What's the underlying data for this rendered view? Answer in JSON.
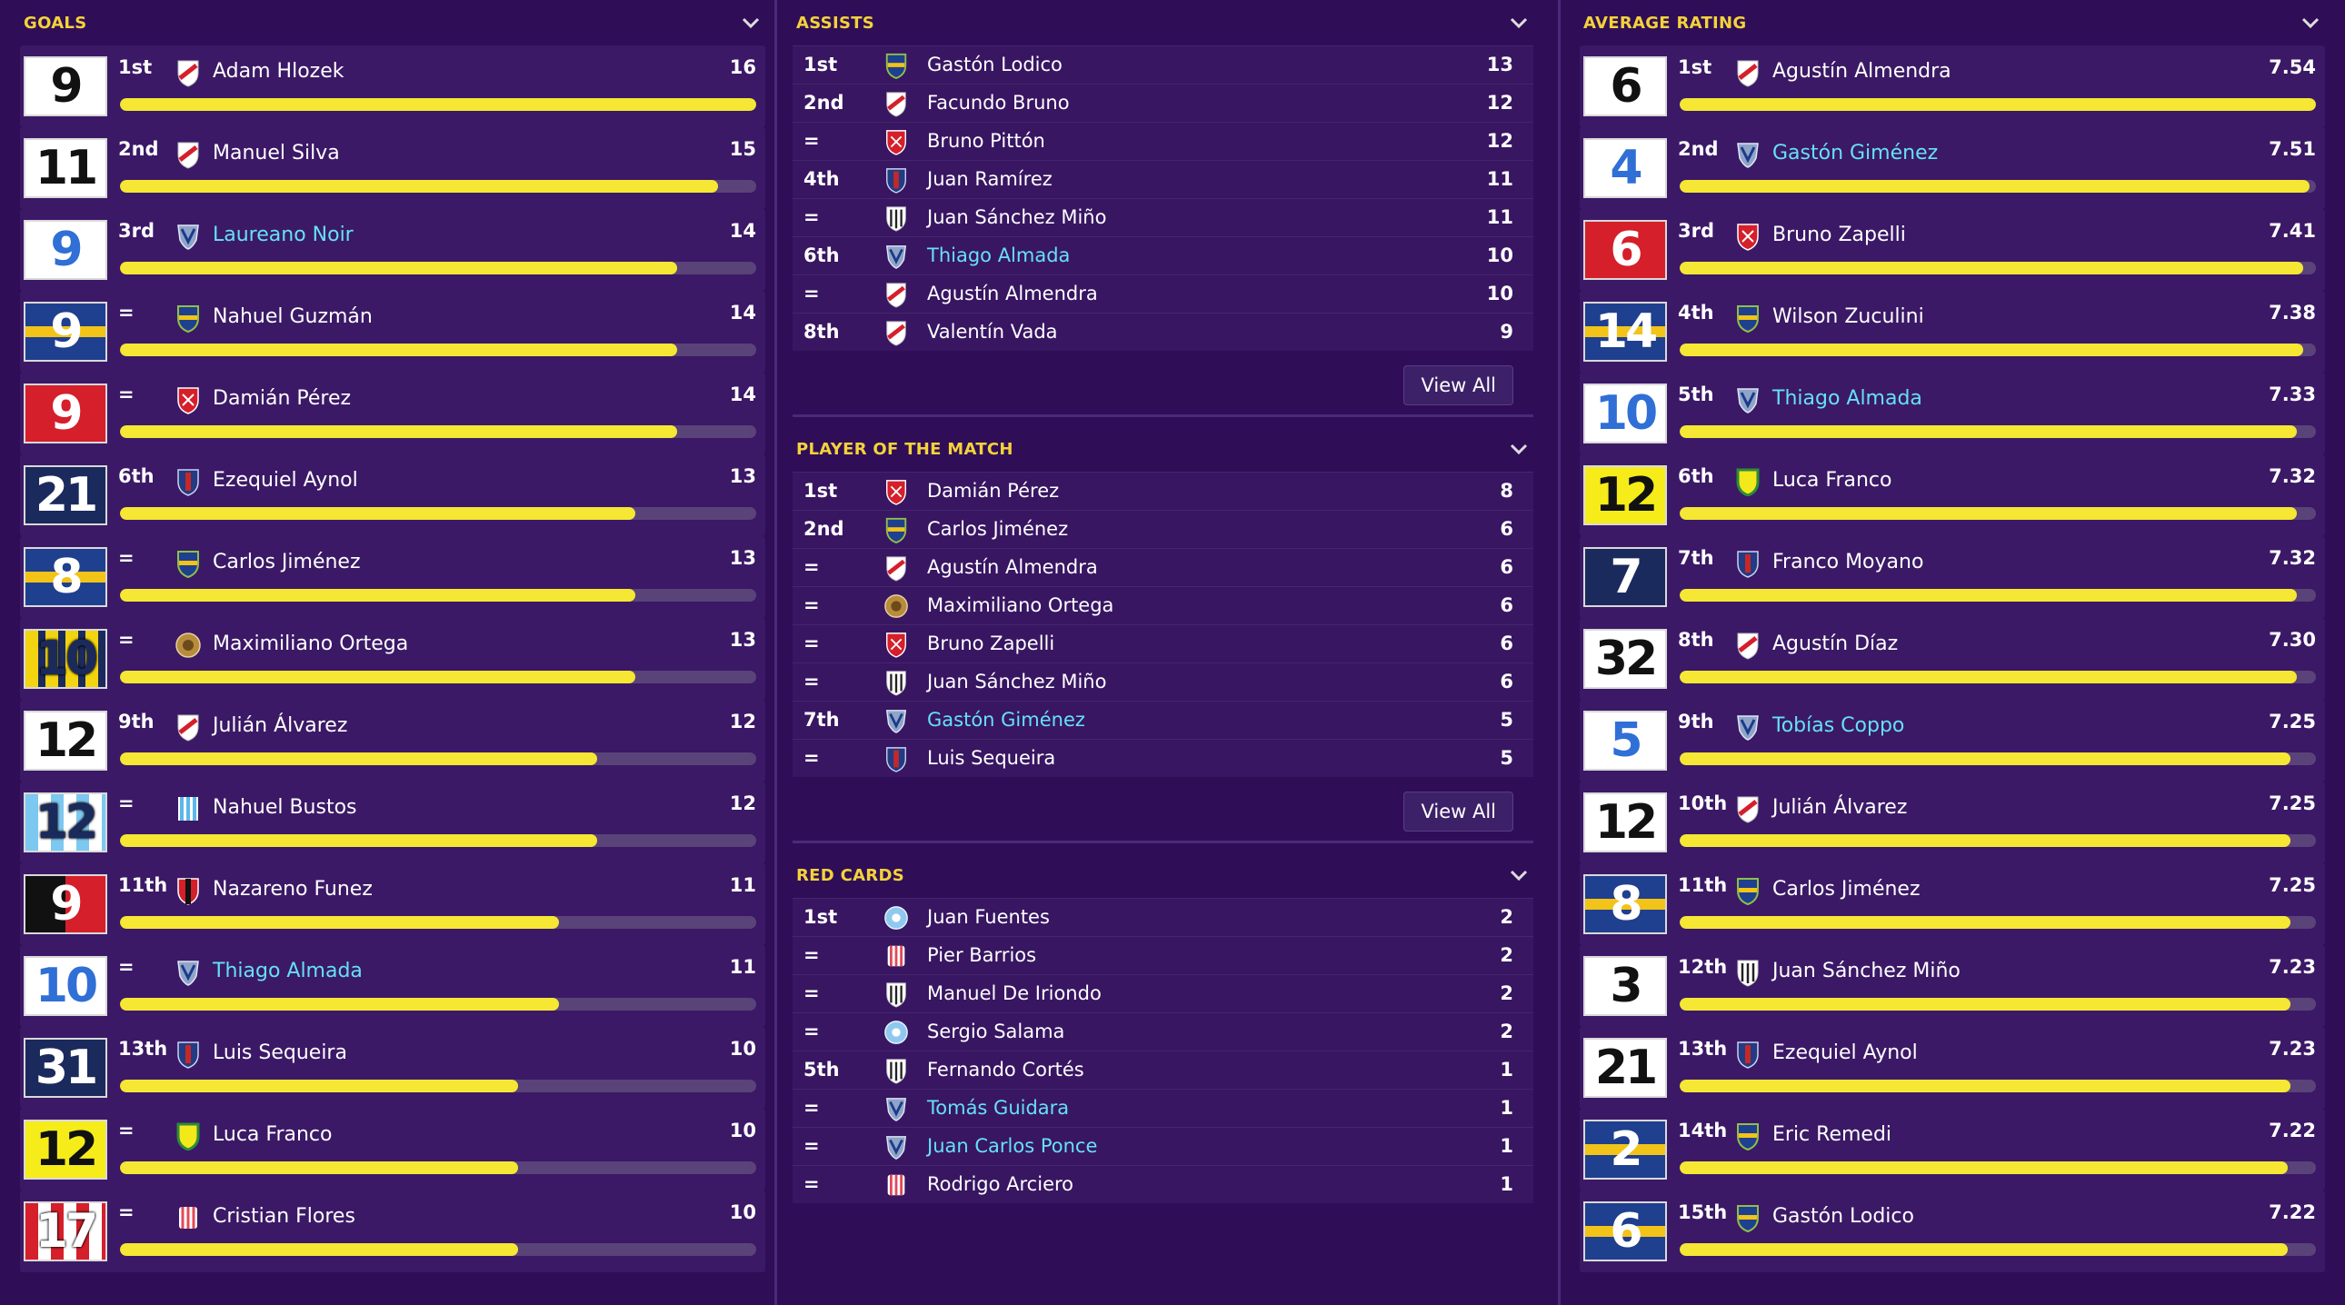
{
  "goals": {
    "title": "GOALS",
    "rows": [
      {
        "shirt": "9",
        "rank": "1st",
        "name": "Adam Hlozek",
        "value": "16",
        "fill": 1.0,
        "link": false,
        "crest": "river",
        "kit": "white"
      },
      {
        "shirt": "11",
        "rank": "2nd",
        "name": "Manuel Silva",
        "value": "15",
        "fill": 0.94,
        "link": false,
        "crest": "river",
        "kit": "white"
      },
      {
        "shirt": "9",
        "rank": "3rd",
        "name": "Laureano Noir",
        "value": "14",
        "fill": 0.875,
        "link": true,
        "crest": "velez",
        "kit": "white-blue"
      },
      {
        "shirt": "9",
        "rank": "=",
        "name": "Nahuel Guzmán",
        "value": "14",
        "fill": 0.875,
        "link": false,
        "crest": "boca",
        "kit": "boca"
      },
      {
        "shirt": "9",
        "rank": "=",
        "name": "Damián Pérez",
        "value": "14",
        "fill": 0.875,
        "link": false,
        "crest": "independiente",
        "kit": "red"
      },
      {
        "shirt": "21",
        "rank": "6th",
        "name": "Ezequiel Aynol",
        "value": "13",
        "fill": 0.81,
        "link": false,
        "crest": "sanlorenzo",
        "kit": "navy"
      },
      {
        "shirt": "8",
        "rank": "=",
        "name": "Carlos Jiménez",
        "value": "13",
        "fill": 0.81,
        "link": false,
        "crest": "boca",
        "kit": "boca"
      },
      {
        "shirt": "10",
        "rank": "=",
        "name": "Maximiliano Ortega",
        "value": "13",
        "fill": 0.81,
        "link": false,
        "crest": "rosario",
        "kit": "yellow-stripes"
      },
      {
        "shirt": "12",
        "rank": "9th",
        "name": "Julián Álvarez",
        "value": "12",
        "fill": 0.75,
        "link": false,
        "crest": "river",
        "kit": "white"
      },
      {
        "shirt": "12",
        "rank": "=",
        "name": "Nahuel Bustos",
        "value": "12",
        "fill": 0.75,
        "link": false,
        "crest": "racing",
        "kit": "sky"
      },
      {
        "shirt": "9",
        "rank": "11th",
        "name": "Nazareno Funez",
        "value": "11",
        "fill": 0.69,
        "link": false,
        "crest": "newells",
        "kit": "black-red"
      },
      {
        "shirt": "10",
        "rank": "=",
        "name": "Thiago Almada",
        "value": "11",
        "fill": 0.69,
        "link": true,
        "crest": "velez",
        "kit": "white-blue"
      },
      {
        "shirt": "31",
        "rank": "13th",
        "name": "Luis Sequeira",
        "value": "10",
        "fill": 0.625,
        "link": false,
        "crest": "sanlorenzo",
        "kit": "navy"
      },
      {
        "shirt": "12",
        "rank": "=",
        "name": "Luca Franco",
        "value": "10",
        "fill": 0.625,
        "link": false,
        "crest": "defensa",
        "kit": "yellow"
      },
      {
        "shirt": "17",
        "rank": "=",
        "name": "Cristian Flores",
        "value": "10",
        "fill": 0.625,
        "link": false,
        "crest": "union",
        "kit": "red-white"
      }
    ]
  },
  "assists": {
    "title": "ASSISTS",
    "view_all": "View All",
    "rows": [
      {
        "rank": "1st",
        "name": "Gastón Lodico",
        "value": "13",
        "link": false,
        "crest": "boca"
      },
      {
        "rank": "2nd",
        "name": "Facundo Bruno",
        "value": "12",
        "link": false,
        "crest": "river"
      },
      {
        "rank": "=",
        "name": "Bruno Pittón",
        "value": "12",
        "link": false,
        "crest": "independiente"
      },
      {
        "rank": "4th",
        "name": "Juan Ramírez",
        "value": "11",
        "link": false,
        "crest": "sanlorenzo"
      },
      {
        "rank": "=",
        "name": "Juan Sánchez Miño",
        "value": "11",
        "link": false,
        "crest": "gimnasia"
      },
      {
        "rank": "6th",
        "name": "Thiago Almada",
        "value": "10",
        "link": true,
        "crest": "velez"
      },
      {
        "rank": "=",
        "name": "Agustín Almendra",
        "value": "10",
        "link": false,
        "crest": "river"
      },
      {
        "rank": "8th",
        "name": "Valentín Vada",
        "value": "9",
        "link": false,
        "crest": "river"
      }
    ]
  },
  "potm": {
    "title": "PLAYER OF THE MATCH",
    "view_all": "View All",
    "rows": [
      {
        "rank": "1st",
        "name": "Damián Pérez",
        "value": "8",
        "link": false,
        "crest": "independiente"
      },
      {
        "rank": "2nd",
        "name": "Carlos Jiménez",
        "value": "6",
        "link": false,
        "crest": "boca"
      },
      {
        "rank": "=",
        "name": "Agustín Almendra",
        "value": "6",
        "link": false,
        "crest": "river"
      },
      {
        "rank": "=",
        "name": "Maximiliano Ortega",
        "value": "6",
        "link": false,
        "crest": "rosario"
      },
      {
        "rank": "=",
        "name": "Bruno Zapelli",
        "value": "6",
        "link": false,
        "crest": "independiente"
      },
      {
        "rank": "=",
        "name": "Juan Sánchez Miño",
        "value": "6",
        "link": false,
        "crest": "gimnasia"
      },
      {
        "rank": "7th",
        "name": "Gastón Giménez",
        "value": "5",
        "link": true,
        "crest": "velez"
      },
      {
        "rank": "=",
        "name": "Luis Sequeira",
        "value": "5",
        "link": false,
        "crest": "sanlorenzo"
      }
    ]
  },
  "red_cards": {
    "title": "RED CARDS",
    "rows": [
      {
        "rank": "1st",
        "name": "Juan Fuentes",
        "value": "2",
        "link": false,
        "crest": "racingblue"
      },
      {
        "rank": "=",
        "name": "Pier Barrios",
        "value": "2",
        "link": false,
        "crest": "union"
      },
      {
        "rank": "=",
        "name": "Manuel De Iriondo",
        "value": "2",
        "link": false,
        "crest": "gimnasia"
      },
      {
        "rank": "=",
        "name": "Sergio Salama",
        "value": "2",
        "link": false,
        "crest": "racingblue"
      },
      {
        "rank": "5th",
        "name": "Fernando Cortés",
        "value": "1",
        "link": false,
        "crest": "gimnasia"
      },
      {
        "rank": "=",
        "name": "Tomás Guidara",
        "value": "1",
        "link": true,
        "crest": "velez"
      },
      {
        "rank": "=",
        "name": "Juan Carlos Ponce",
        "value": "1",
        "link": true,
        "crest": "velez"
      },
      {
        "rank": "=",
        "name": "Rodrigo Arciero",
        "value": "1",
        "link": false,
        "crest": "union"
      }
    ]
  },
  "rating": {
    "title": "AVERAGE RATING",
    "rows": [
      {
        "shirt": "6",
        "rank": "1st",
        "name": "Agustín Almendra",
        "value": "7.54",
        "fill": 1.0,
        "link": false,
        "crest": "river",
        "kit": "white"
      },
      {
        "shirt": "4",
        "rank": "2nd",
        "name": "Gastón Giménez",
        "value": "7.51",
        "fill": 0.99,
        "link": true,
        "crest": "velez",
        "kit": "white-blue"
      },
      {
        "shirt": "6",
        "rank": "3rd",
        "name": "Bruno Zapelli",
        "value": "7.41",
        "fill": 0.98,
        "link": false,
        "crest": "independiente",
        "kit": "red"
      },
      {
        "shirt": "14",
        "rank": "4th",
        "name": "Wilson Zuculini",
        "value": "7.38",
        "fill": 0.98,
        "link": false,
        "crest": "boca",
        "kit": "boca"
      },
      {
        "shirt": "10",
        "rank": "5th",
        "name": "Thiago Almada",
        "value": "7.33",
        "fill": 0.97,
        "link": true,
        "crest": "velez",
        "kit": "white-blue"
      },
      {
        "shirt": "12",
        "rank": "6th",
        "name": "Luca Franco",
        "value": "7.32",
        "fill": 0.97,
        "link": false,
        "crest": "defensa",
        "kit": "yellow"
      },
      {
        "shirt": "7",
        "rank": "7th",
        "name": "Franco Moyano",
        "value": "7.32",
        "fill": 0.97,
        "link": false,
        "crest": "sanlorenzo",
        "kit": "navy-white"
      },
      {
        "shirt": "32",
        "rank": "8th",
        "name": "Agustín Díaz",
        "value": "7.30",
        "fill": 0.97,
        "link": false,
        "crest": "river",
        "kit": "white"
      },
      {
        "shirt": "5",
        "rank": "9th",
        "name": "Tobías Coppo",
        "value": "7.25",
        "fill": 0.96,
        "link": true,
        "crest": "velez",
        "kit": "white-blue"
      },
      {
        "shirt": "12",
        "rank": "10th",
        "name": "Julián Álvarez",
        "value": "7.25",
        "fill": 0.96,
        "link": false,
        "crest": "river",
        "kit": "white"
      },
      {
        "shirt": "8",
        "rank": "11th",
        "name": "Carlos Jiménez",
        "value": "7.25",
        "fill": 0.96,
        "link": false,
        "crest": "boca",
        "kit": "boca"
      },
      {
        "shirt": "3",
        "rank": "12th",
        "name": "Juan Sánchez Miño",
        "value": "7.23",
        "fill": 0.96,
        "link": false,
        "crest": "gimnasia",
        "kit": "white"
      },
      {
        "shirt": "21",
        "rank": "13th",
        "name": "Ezequiel Aynol",
        "value": "7.23",
        "fill": 0.96,
        "link": false,
        "crest": "sanlorenzo",
        "kit": "white"
      },
      {
        "shirt": "2",
        "rank": "14th",
        "name": "Eric Remedi",
        "value": "7.22",
        "fill": 0.955,
        "link": false,
        "crest": "boca",
        "kit": "boca"
      },
      {
        "shirt": "6",
        "rank": "15th",
        "name": "Gastón Lodico",
        "value": "7.22",
        "fill": 0.955,
        "link": false,
        "crest": "boca",
        "kit": "boca"
      }
    ]
  },
  "colors": {
    "accent": "#f4d23a",
    "bar": "#f5e733",
    "link": "#66e0f4",
    "bg": "#2f0e57"
  }
}
